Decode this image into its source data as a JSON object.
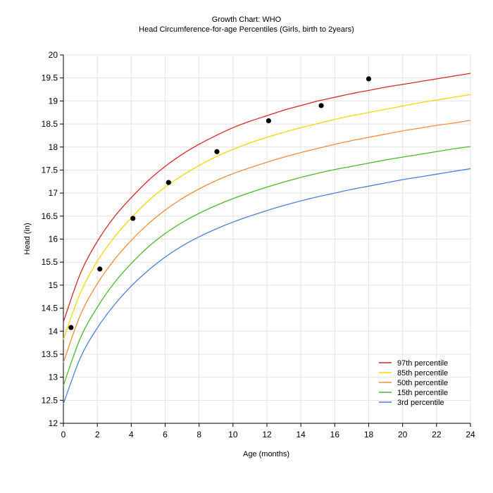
{
  "chart_data": {
    "type": "line",
    "title": "Growth Chart: WHO",
    "subtitle": "Head Circumference-for-age Percentiles (Girls, birth to 2years)",
    "xlabel": "Age (months)",
    "ylabel": "Head (in)",
    "xlim": [
      0,
      24
    ],
    "ylim": [
      12,
      20
    ],
    "x_ticks": [
      "0",
      "2",
      "4",
      "6",
      "8",
      "10",
      "12",
      "14",
      "16",
      "18",
      "20",
      "22",
      "24"
    ],
    "y_ticks": [
      "12",
      "12.5",
      "13",
      "13.5",
      "14",
      "14.5",
      "15",
      "15.5",
      "16",
      "16.5",
      "17",
      "17.5",
      "18",
      "18.5",
      "19",
      "19.5",
      "20"
    ],
    "grid": true,
    "legend_position": "bottom-right",
    "x": [
      0,
      1,
      2,
      3,
      4,
      5,
      6,
      7,
      8,
      9,
      10,
      11,
      12,
      13,
      14,
      15,
      16,
      17,
      18,
      19,
      20,
      21,
      22,
      23,
      24
    ],
    "series": [
      {
        "name": "97th percentile",
        "color": "#d62728",
        "values": [
          14.2,
          15.25,
          15.95,
          16.48,
          16.9,
          17.27,
          17.58,
          17.84,
          18.06,
          18.25,
          18.42,
          18.56,
          18.68,
          18.8,
          18.9,
          19.0,
          19.08,
          19.16,
          19.23,
          19.3,
          19.36,
          19.42,
          19.48,
          19.54,
          19.6
        ]
      },
      {
        "name": "85th percentile",
        "color": "#f5d800",
        "values": [
          13.82,
          14.83,
          15.52,
          16.04,
          16.46,
          16.83,
          17.13,
          17.38,
          17.6,
          17.79,
          17.95,
          18.09,
          18.21,
          18.32,
          18.42,
          18.51,
          18.6,
          18.68,
          18.75,
          18.82,
          18.89,
          18.96,
          19.02,
          19.08,
          19.14
        ]
      },
      {
        "name": "50th percentile",
        "color": "#f28c3c",
        "values": [
          13.32,
          14.35,
          15.03,
          15.55,
          15.97,
          16.33,
          16.63,
          16.88,
          17.09,
          17.27,
          17.42,
          17.55,
          17.67,
          17.78,
          17.88,
          17.97,
          18.06,
          18.14,
          18.21,
          18.28,
          18.35,
          18.41,
          18.47,
          18.52,
          18.58
        ]
      },
      {
        "name": "15th percentile",
        "color": "#4cb82a",
        "values": [
          12.82,
          13.85,
          14.52,
          15.05,
          15.47,
          15.83,
          16.12,
          16.36,
          16.56,
          16.73,
          16.88,
          17.01,
          17.13,
          17.24,
          17.34,
          17.43,
          17.51,
          17.58,
          17.65,
          17.72,
          17.78,
          17.84,
          17.9,
          17.96,
          18.01
        ]
      },
      {
        "name": "3rd percentile",
        "color": "#4a7fd8",
        "values": [
          12.42,
          13.42,
          14.07,
          14.57,
          14.98,
          15.32,
          15.61,
          15.85,
          16.05,
          16.22,
          16.37,
          16.5,
          16.62,
          16.73,
          16.83,
          16.92,
          17.0,
          17.08,
          17.15,
          17.22,
          17.29,
          17.35,
          17.41,
          17.47,
          17.53
        ]
      }
    ],
    "measurements": [
      {
        "x": 0.45,
        "y": 14.08
      },
      {
        "x": 2.15,
        "y": 15.35
      },
      {
        "x": 4.1,
        "y": 16.45
      },
      {
        "x": 6.2,
        "y": 17.23
      },
      {
        "x": 9.05,
        "y": 17.9
      },
      {
        "x": 12.1,
        "y": 18.57
      },
      {
        "x": 15.2,
        "y": 18.9
      },
      {
        "x": 18.0,
        "y": 19.48
      }
    ],
    "marker_color": "#000000"
  }
}
